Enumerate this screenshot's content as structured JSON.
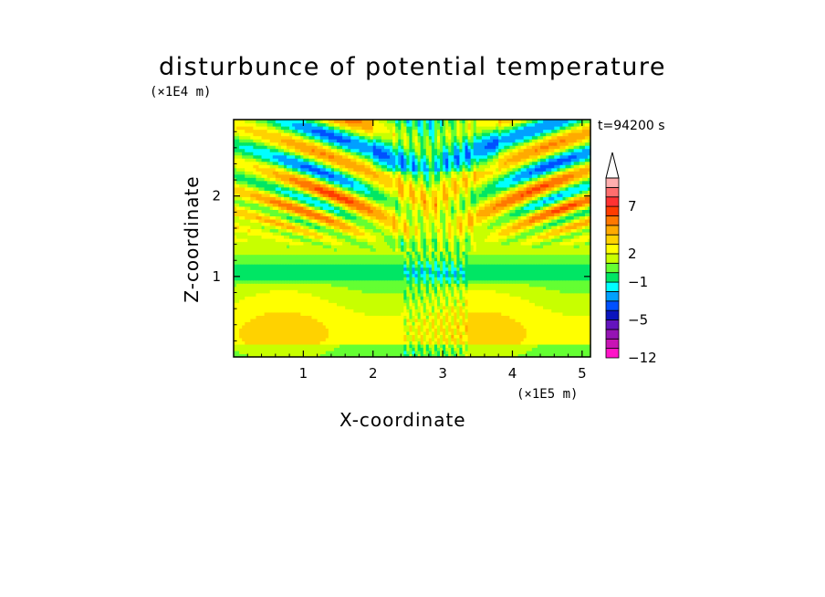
{
  "title": "disturbunce of potential temperature",
  "x_unit": "(×1E5 m)",
  "y_unit": "(×1E4 m)",
  "time_label": "t=94200 s",
  "chart_data": {
    "type": "heatmap",
    "title": "disturbunce of potential temperature",
    "xlabel": "X-coordinate",
    "ylabel": "Z-coordinate",
    "xlim": [
      0,
      5.12
    ],
    "ylim": [
      0,
      2.95
    ],
    "x_ticks": [
      1,
      2,
      3,
      4,
      5
    ],
    "x_tick_labels": [
      "1",
      "2",
      "3",
      "4",
      "5"
    ],
    "y_ticks": [
      1,
      2
    ],
    "y_tick_labels": [
      "1",
      "2"
    ],
    "colorbar": {
      "levels": [
        -12,
        -10,
        -8,
        -6,
        -5,
        -4,
        -3,
        -2,
        -1,
        0,
        1,
        2,
        3,
        4,
        5,
        6,
        7,
        8,
        9
      ],
      "colors": [
        "#ff14c8",
        "#c814b4",
        "#9614b4",
        "#6414be",
        "#0a14be",
        "#0050ff",
        "#00a0ff",
        "#00ffff",
        "#00e664",
        "#64ff32",
        "#c8ff00",
        "#ffff00",
        "#ffd200",
        "#ffaa00",
        "#ff7800",
        "#ff3c00",
        "#ff3232",
        "#ff6e6e",
        "#ffafaf"
      ],
      "labeled_values": [
        -12,
        -5,
        -1,
        2,
        7
      ],
      "labels": [
        "−12",
        "−5",
        "−1",
        "2",
        "7"
      ],
      "extend": "max",
      "top_arrow_color": "#ffffff"
    }
  }
}
